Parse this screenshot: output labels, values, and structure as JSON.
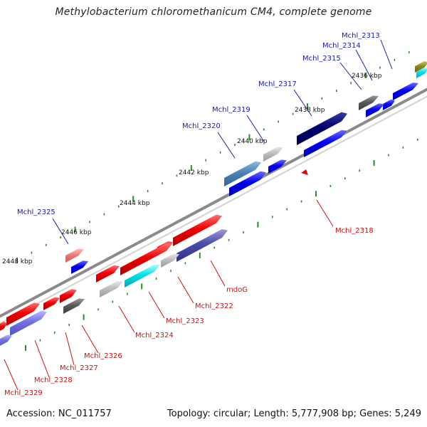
{
  "title": "Methylobacterium chloromethanicum CM4, complete genome",
  "footer": {
    "accession": "Accession: NC_011757",
    "summary": "Topology: circular; Length: 5,777,908 bp; Genes: 5,249"
  },
  "colors": {
    "backbone": "#8a8a8a",
    "tick": "#2a8a2a",
    "label_forward": "#1a1aa8",
    "label_reverse": "#cc1111"
  },
  "ticks": [
    {
      "label": "2436 kbp"
    },
    {
      "label": "2438 kbp"
    },
    {
      "label": "2440 kbp"
    },
    {
      "label": "2442 kbp"
    },
    {
      "label": "2444 kbp"
    },
    {
      "label": "2446 kbp"
    },
    {
      "label": "2448 kbp"
    }
  ],
  "genes_forward": [
    {
      "name": "Mchl_2313"
    },
    {
      "name": "Mchl_2314"
    },
    {
      "name": "Mchl_2315"
    },
    {
      "name": "Mchl_2317"
    },
    {
      "name": "Mchl_2319"
    },
    {
      "name": "Mchl_2320"
    },
    {
      "name": "Mchl_2325"
    }
  ],
  "genes_reverse": [
    {
      "name": "Mchl_2318"
    },
    {
      "name": "mdoG"
    },
    {
      "name": "Mchl_2322"
    },
    {
      "name": "Mchl_2323"
    },
    {
      "name": "Mchl_2324"
    },
    {
      "name": "Mchl_2326"
    },
    {
      "name": "Mchl_2327"
    },
    {
      "name": "Mchl_2328"
    },
    {
      "name": "Mchl_2329"
    }
  ]
}
